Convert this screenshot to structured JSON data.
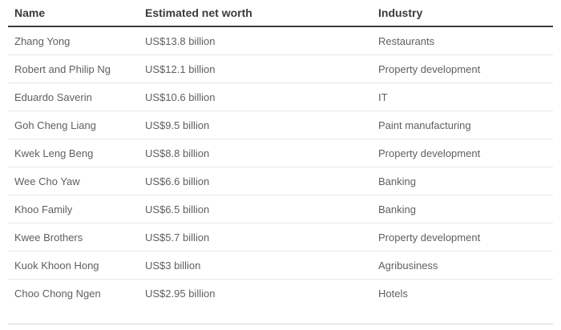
{
  "table": {
    "headers": [
      "Name",
      "Estimated net worth",
      "Industry"
    ],
    "rows": [
      [
        "Zhang Yong",
        "US$13.8 billion",
        "Restaurants"
      ],
      [
        "Robert and Philip Ng",
        "US$12.1 billion",
        "Property development"
      ],
      [
        "Eduardo Saverin",
        "US$10.6 billion",
        "IT"
      ],
      [
        "Goh Cheng Liang",
        "US$9.5 billion",
        "Paint manufacturing"
      ],
      [
        "Kwek Leng Beng",
        "US$8.8 billion",
        "Property development"
      ],
      [
        "Wee Cho Yaw",
        "US$6.6 billion",
        "Banking"
      ],
      [
        "Khoo Family",
        "US$6.5 billion",
        "Banking"
      ],
      [
        "Kwee Brothers",
        "US$5.7 billion",
        "Property development"
      ],
      [
        "Kuok Khoon Hong",
        "US$3 billion",
        "Agribusiness"
      ],
      [
        "Choo Chong Ngen",
        "US$2.95 billion",
        "Hotels"
      ]
    ]
  }
}
